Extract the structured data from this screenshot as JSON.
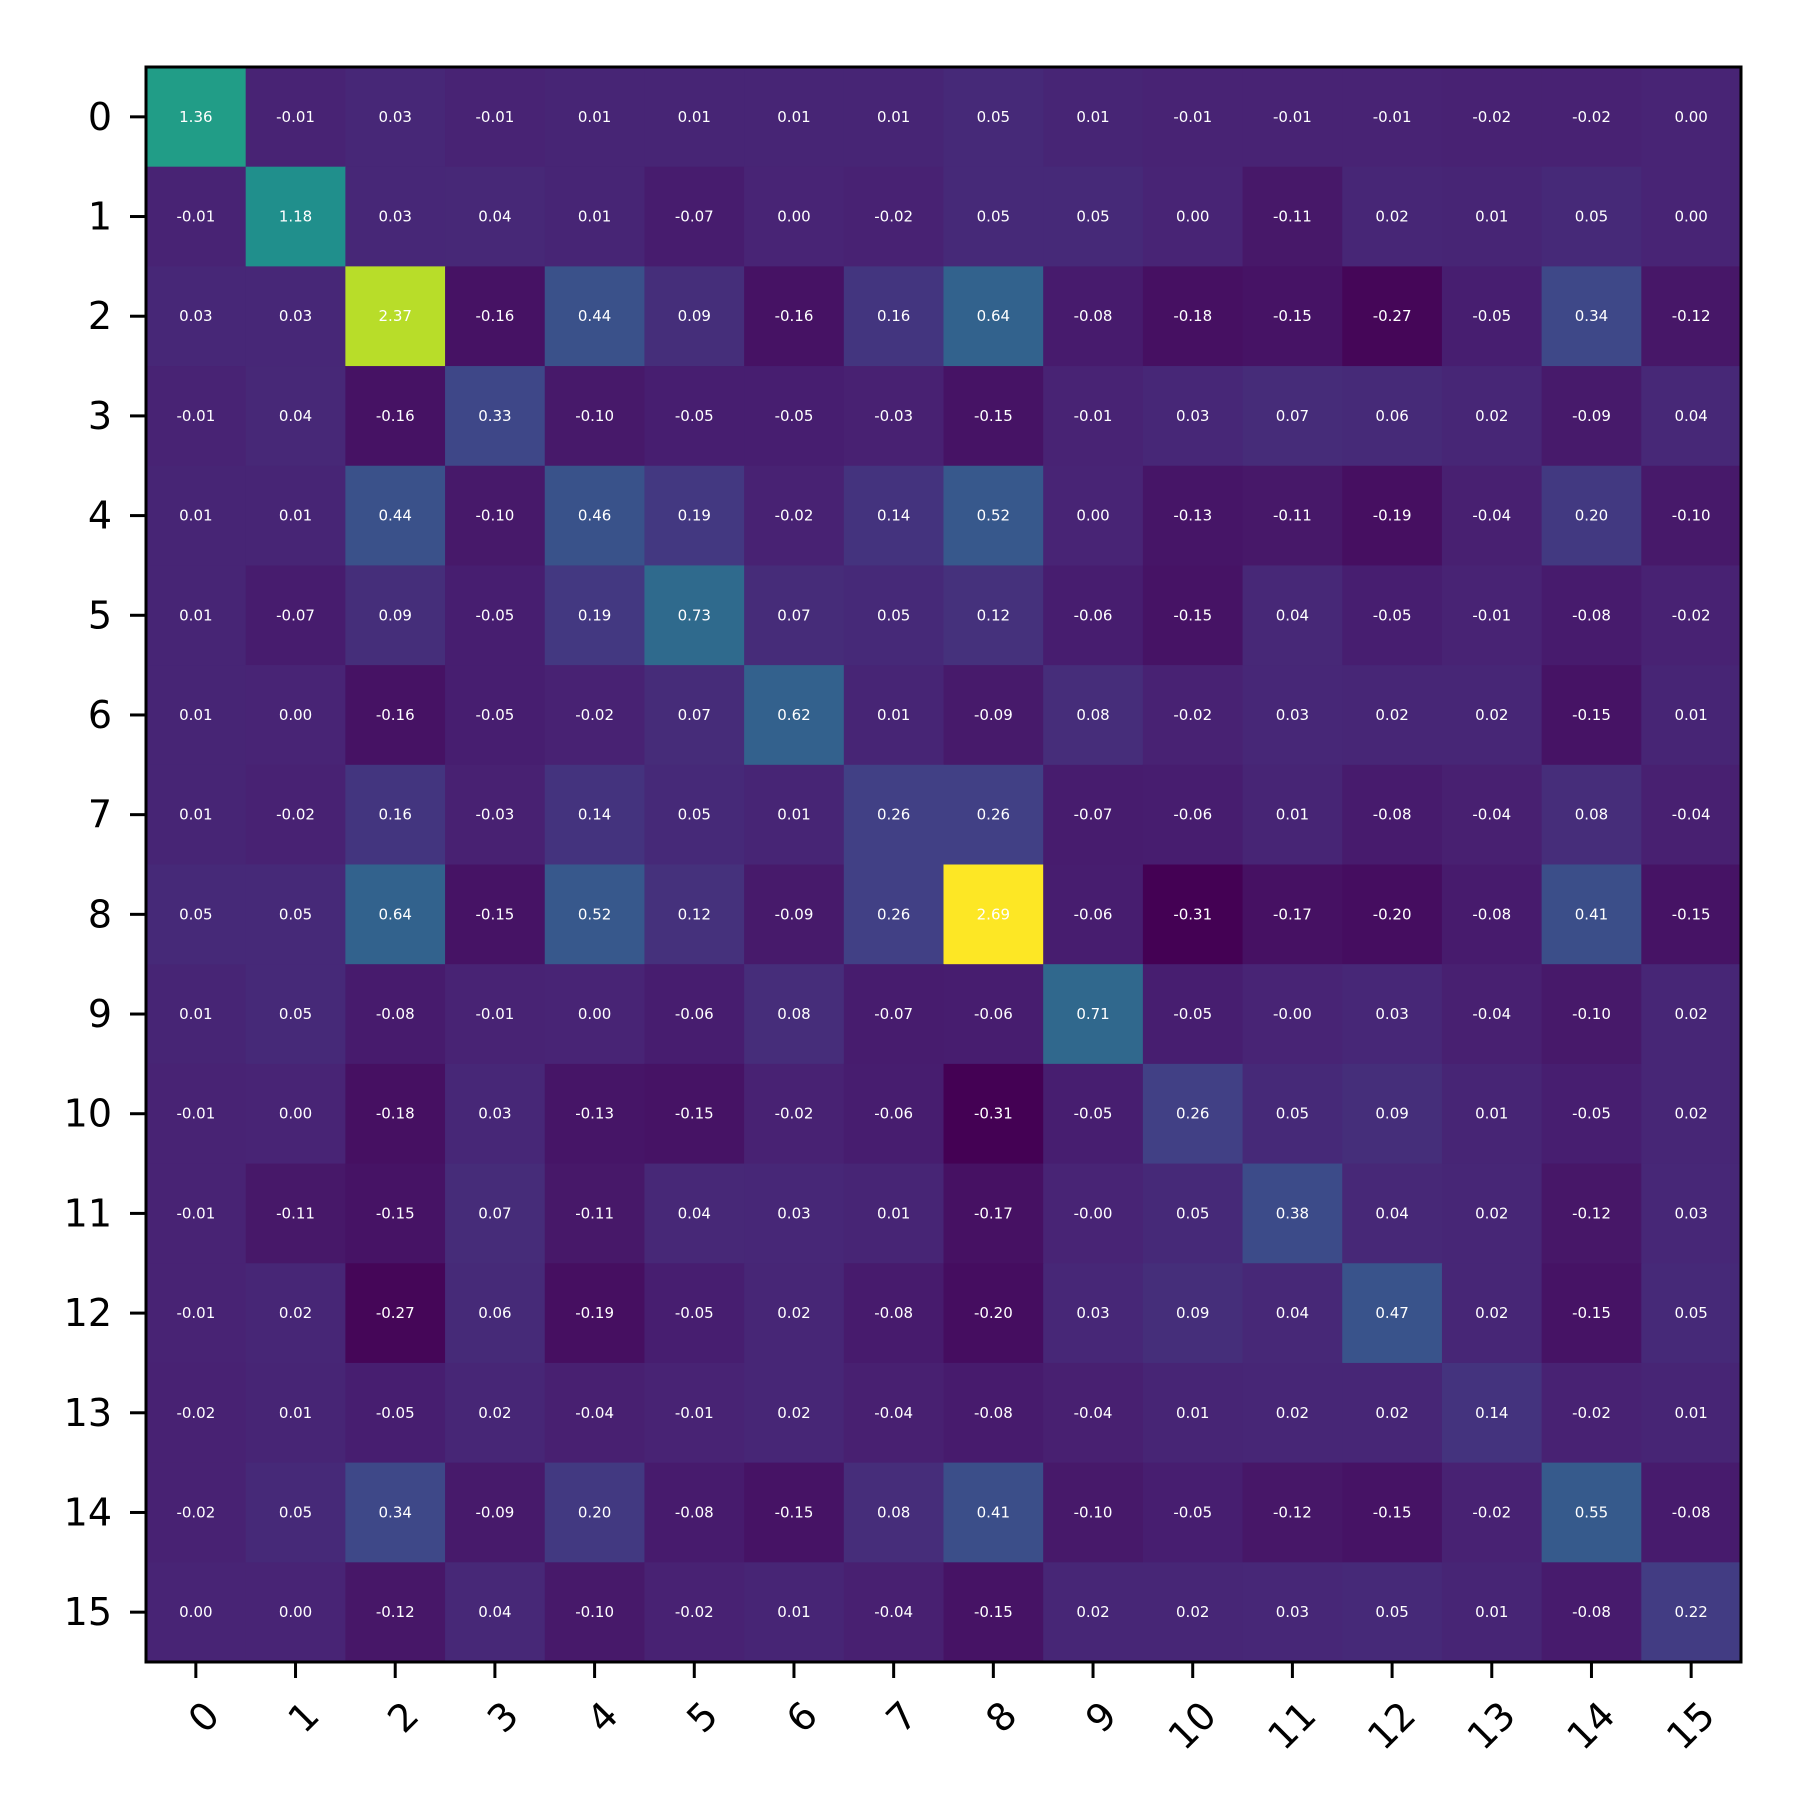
{
  "chart_data": {
    "type": "heatmap",
    "title": "",
    "xlabel": "",
    "ylabel": "",
    "colormap": "viridis",
    "value_range": [
      -0.31,
      2.69
    ],
    "grid": false,
    "x_categories": [
      "0",
      "1",
      "2",
      "3",
      "4",
      "5",
      "6",
      "7",
      "8",
      "9",
      "10",
      "11",
      "12",
      "13",
      "14",
      "15"
    ],
    "y_categories": [
      "0",
      "1",
      "2",
      "3",
      "4",
      "5",
      "6",
      "7",
      "8",
      "9",
      "10",
      "11",
      "12",
      "13",
      "14",
      "15"
    ],
    "values": [
      [
        "1.36",
        "-0.01",
        "0.03",
        "-0.01",
        "0.01",
        "0.01",
        "0.01",
        "0.01",
        "0.05",
        "0.01",
        "-0.01",
        "-0.01",
        "-0.01",
        "-0.02",
        "-0.02",
        "0.00"
      ],
      [
        "-0.01",
        "1.18",
        "0.03",
        "0.04",
        "0.01",
        "-0.07",
        "0.00",
        "-0.02",
        "0.05",
        "0.05",
        "0.00",
        "-0.11",
        "0.02",
        "0.01",
        "0.05",
        "0.00"
      ],
      [
        "0.03",
        "0.03",
        "2.37",
        "-0.16",
        "0.44",
        "0.09",
        "-0.16",
        "0.16",
        "0.64",
        "-0.08",
        "-0.18",
        "-0.15",
        "-0.27",
        "-0.05",
        "0.34",
        "-0.12"
      ],
      [
        "-0.01",
        "0.04",
        "-0.16",
        "0.33",
        "-0.10",
        "-0.05",
        "-0.05",
        "-0.03",
        "-0.15",
        "-0.01",
        "0.03",
        "0.07",
        "0.06",
        "0.02",
        "-0.09",
        "0.04"
      ],
      [
        "0.01",
        "0.01",
        "0.44",
        "-0.10",
        "0.46",
        "0.19",
        "-0.02",
        "0.14",
        "0.52",
        "0.00",
        "-0.13",
        "-0.11",
        "-0.19",
        "-0.04",
        "0.20",
        "-0.10"
      ],
      [
        "0.01",
        "-0.07",
        "0.09",
        "-0.05",
        "0.19",
        "0.73",
        "0.07",
        "0.05",
        "0.12",
        "-0.06",
        "-0.15",
        "0.04",
        "-0.05",
        "-0.01",
        "-0.08",
        "-0.02"
      ],
      [
        "0.01",
        "0.00",
        "-0.16",
        "-0.05",
        "-0.02",
        "0.07",
        "0.62",
        "0.01",
        "-0.09",
        "0.08",
        "-0.02",
        "0.03",
        "0.02",
        "0.02",
        "-0.15",
        "0.01"
      ],
      [
        "0.01",
        "-0.02",
        "0.16",
        "-0.03",
        "0.14",
        "0.05",
        "0.01",
        "0.26",
        "0.26",
        "-0.07",
        "-0.06",
        "0.01",
        "-0.08",
        "-0.04",
        "0.08",
        "-0.04"
      ],
      [
        "0.05",
        "0.05",
        "0.64",
        "-0.15",
        "0.52",
        "0.12",
        "-0.09",
        "0.26",
        "2.69",
        "-0.06",
        "-0.31",
        "-0.17",
        "-0.20",
        "-0.08",
        "0.41",
        "-0.15"
      ],
      [
        "0.01",
        "0.05",
        "-0.08",
        "-0.01",
        "0.00",
        "-0.06",
        "0.08",
        "-0.07",
        "-0.06",
        "0.71",
        "-0.05",
        "-0.00",
        "0.03",
        "-0.04",
        "-0.10",
        "0.02"
      ],
      [
        "-0.01",
        "0.00",
        "-0.18",
        "0.03",
        "-0.13",
        "-0.15",
        "-0.02",
        "-0.06",
        "-0.31",
        "-0.05",
        "0.26",
        "0.05",
        "0.09",
        "0.01",
        "-0.05",
        "0.02"
      ],
      [
        "-0.01",
        "-0.11",
        "-0.15",
        "0.07",
        "-0.11",
        "0.04",
        "0.03",
        "0.01",
        "-0.17",
        "-0.00",
        "0.05",
        "0.38",
        "0.04",
        "0.02",
        "-0.12",
        "0.03"
      ],
      [
        "-0.01",
        "0.02",
        "-0.27",
        "0.06",
        "-0.19",
        "-0.05",
        "0.02",
        "-0.08",
        "-0.20",
        "0.03",
        "0.09",
        "0.04",
        "0.47",
        "0.02",
        "-0.15",
        "0.05"
      ],
      [
        "-0.02",
        "0.01",
        "-0.05",
        "0.02",
        "-0.04",
        "-0.01",
        "0.02",
        "-0.04",
        "-0.08",
        "-0.04",
        "0.01",
        "0.02",
        "0.02",
        "0.14",
        "-0.02",
        "0.01"
      ],
      [
        "-0.02",
        "0.05",
        "0.34",
        "-0.09",
        "0.20",
        "-0.08",
        "-0.15",
        "0.08",
        "0.41",
        "-0.10",
        "-0.05",
        "-0.12",
        "-0.15",
        "-0.02",
        "0.55",
        "-0.08"
      ],
      [
        "0.00",
        "0.00",
        "-0.12",
        "0.04",
        "-0.10",
        "-0.02",
        "0.01",
        "-0.04",
        "-0.15",
        "0.02",
        "0.02",
        "0.03",
        "0.05",
        "0.01",
        "-0.08",
        "0.22"
      ]
    ]
  }
}
